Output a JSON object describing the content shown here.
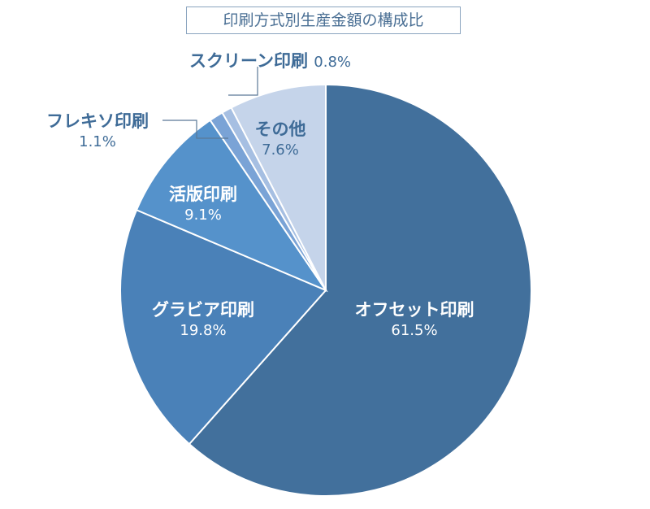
{
  "chart_data": {
    "type": "pie",
    "title": "印刷方式別生産金額の構成比",
    "start": "top",
    "direction": "clockwise",
    "slices": [
      {
        "label": "オフセット印刷",
        "value": 61.5,
        "display": "61.5%",
        "color": "#42709c"
      },
      {
        "label": "グラビア印刷",
        "value": 19.8,
        "display": "19.8%",
        "color": "#4a81b8"
      },
      {
        "label": "活版印刷",
        "value": 9.1,
        "display": "9.1%",
        "color": "#5592cb"
      },
      {
        "label": "フレキソ印刷",
        "value": 1.1,
        "display": "1.1%",
        "color": "#7aa3d6"
      },
      {
        "label": "スクリーン印刷",
        "value": 0.8,
        "display": "0.8%",
        "color": "#a6bfe2"
      },
      {
        "label": "その他",
        "value": 7.6,
        "display": "7.6%",
        "color": "#c5d4ea"
      }
    ]
  }
}
